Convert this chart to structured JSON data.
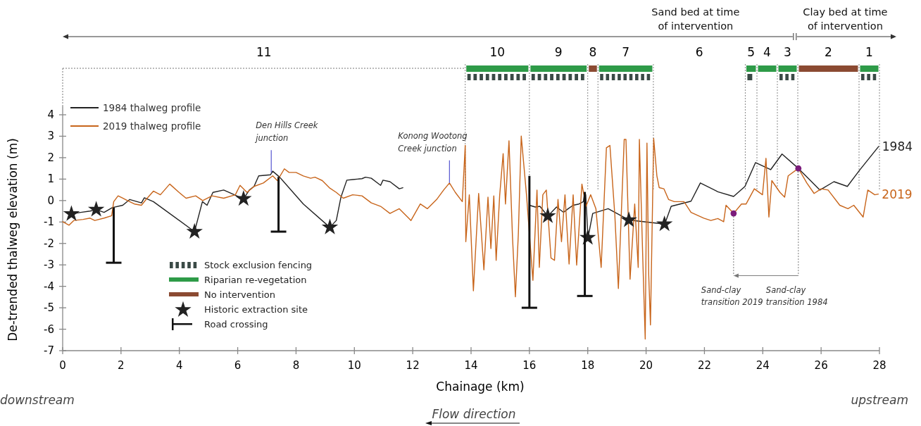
{
  "chart_data": {
    "type": "line",
    "xlabel": "Chainage (km)",
    "ylabel": "De-trended thalweg elevation (m)",
    "xlim": [
      0,
      28
    ],
    "xticks": [
      0,
      2,
      4,
      6,
      8,
      10,
      12,
      14,
      16,
      18,
      20,
      22,
      24,
      26,
      28
    ],
    "ylim": [
      -7,
      4.4
    ],
    "yticks": [
      -7,
      -6,
      -5,
      -4,
      -3,
      -2,
      -1,
      0,
      1,
      2,
      3,
      4
    ],
    "legend": "left",
    "grid": false,
    "series": [
      {
        "name": "1984 thalweg profile",
        "color": "#222222",
        "marker": "none",
        "x": [
          0.3,
          0.62,
          0.94,
          1.15,
          1.42,
          1.7,
          2.06,
          2.3,
          2.7,
          2.8,
          3.11,
          4.52,
          4.79,
          4.95,
          5.15,
          5.52,
          6.2,
          6.4,
          6.56,
          6.72,
          7.12,
          7.2,
          7.44,
          8.25,
          9.16,
          9.38,
          9.54,
          9.74,
          9.94,
          10.26,
          10.38,
          10.58,
          10.9,
          10.98,
          11.22,
          11.54,
          11.66,
          13.8,
          16.0,
          16.2,
          16.36,
          16.63,
          16.93,
          17.17,
          17.33,
          17.5,
          17.7,
          17.85,
          17.89,
          17.93,
          18.01,
          18.17,
          18.7,
          19.42,
          20.64,
          20.86,
          21.54,
          21.86,
          22.46,
          23.0,
          23.39,
          23.75,
          24.27,
          24.66,
          25.22,
          25.96,
          26.44,
          26.9,
          27.32,
          27.97
        ],
        "values": [
          -0.62,
          -0.55,
          -0.49,
          -0.42,
          -0.55,
          -0.33,
          -0.22,
          0.05,
          -0.11,
          0.13,
          -0.05,
          -1.45,
          -0.05,
          -0.22,
          0.38,
          0.49,
          0.08,
          0.49,
          0.66,
          1.15,
          1.2,
          1.37,
          1.09,
          -0.16,
          -1.25,
          -0.93,
          0.16,
          0.95,
          0.98,
          1.02,
          1.09,
          1.04,
          0.71,
          0.95,
          0.88,
          0.55,
          0.6,
          null,
          -0.22,
          -0.3,
          -0.27,
          -0.73,
          -0.3,
          -0.55,
          -0.38,
          -0.22,
          -0.16,
          -0.05,
          0.38,
          0.27,
          -1.73,
          -0.6,
          -0.38,
          -0.91,
          -1.1,
          -0.27,
          -0.03,
          0.82,
          0.41,
          0.19,
          0.66,
          1.77,
          1.44,
          2.17,
          1.5,
          0.49,
          0.88,
          0.66,
          1.42,
          2.52
        ]
      },
      {
        "name": "2019 thalweg profile",
        "color": "#c8651b",
        "marker": "none",
        "x": [
          0,
          0.22,
          0.38,
          0.7,
          0.94,
          1.1,
          1.42,
          1.68,
          1.75,
          1.9,
          2.06,
          2.22,
          2.46,
          2.7,
          2.86,
          3.11,
          3.35,
          3.67,
          3.99,
          4.23,
          4.56,
          4.8,
          5.12,
          5.52,
          5.92,
          6.08,
          6.32,
          6.56,
          6.88,
          7.2,
          7.36,
          7.6,
          7.76,
          8.0,
          8.25,
          8.5,
          8.65,
          8.9,
          9.14,
          9.38,
          9.62,
          9.94,
          10.26,
          10.58,
          10.9,
          11.22,
          11.54,
          11.86,
          11.94,
          12.26,
          12.5,
          12.82,
          13.06,
          13.26,
          13.46,
          13.7,
          13.8,
          13.82,
          13.94,
          14.08,
          14.26,
          14.44,
          14.58,
          14.68,
          14.78,
          14.86,
          14.98,
          15.1,
          15.18,
          15.3,
          15.42,
          15.52,
          15.62,
          15.72,
          15.9,
          16.12,
          16.26,
          16.34,
          16.46,
          16.58,
          16.74,
          16.86,
          16.98,
          17.1,
          17.22,
          17.36,
          17.5,
          17.62,
          17.8,
          17.94,
          18.1,
          18.28,
          18.46,
          18.64,
          18.76,
          18.93,
          19.05,
          19.25,
          19.31,
          19.45,
          19.61,
          19.73,
          19.77,
          19.89,
          19.97,
          20.03,
          20.09,
          20.15,
          20.26,
          20.37,
          20.45,
          20.61,
          20.77,
          20.97,
          21.3,
          21.54,
          21.98,
          22.22,
          22.46,
          22.66,
          22.74,
          23.0,
          23.27,
          23.43,
          23.71,
          23.99,
          24.11,
          24.21,
          24.31,
          24.59,
          24.75,
          24.87,
          25.22,
          25.51,
          25.76,
          26.0,
          26.24,
          26.64,
          26.92,
          27.12,
          27.44,
          27.6,
          27.84,
          27.96
        ],
        "values": [
          -0.99,
          -1.15,
          -0.93,
          -0.88,
          -0.82,
          -0.93,
          -0.82,
          -0.71,
          -0.05,
          0.22,
          0.11,
          0,
          -0.16,
          -0.22,
          0.05,
          0.44,
          0.27,
          0.77,
          0.38,
          0.11,
          0.22,
          0,
          0.22,
          0.11,
          0.27,
          0.71,
          0.38,
          0.66,
          0.82,
          1.15,
          0.93,
          1.48,
          1.31,
          1.31,
          1.15,
          1.04,
          1.09,
          0.93,
          0.6,
          0.38,
          0.11,
          0.27,
          0.22,
          -0.11,
          -0.27,
          -0.6,
          -0.38,
          -0.82,
          -0.93,
          -0.16,
          -0.38,
          0.05,
          0.49,
          0.82,
          0.38,
          -0.05,
          2.57,
          -1.92,
          0.27,
          -4.21,
          0.33,
          -3.23,
          0.16,
          -2.24,
          0.22,
          -2.79,
          0.22,
          2.19,
          -0.16,
          2.79,
          -1.7,
          -4.49,
          -1.59,
          3.01,
          0.27,
          -3.72,
          0.49,
          -3.12,
          0.27,
          0.49,
          -2.68,
          -2.79,
          0.05,
          -1.92,
          0.27,
          -2.96,
          0.27,
          -3.01,
          0.77,
          -0.27,
          0.27,
          -0.38,
          -3.12,
          2.46,
          2.57,
          -0.71,
          -4.1,
          2.85,
          2.85,
          -3.67,
          -0.16,
          -3.12,
          2.85,
          -2.85,
          -6.46,
          2.68,
          -3.45,
          -5.8,
          2.9,
          1.15,
          0.6,
          0.55,
          0.05,
          -0.05,
          -0.05,
          -0.55,
          -0.82,
          -0.93,
          -0.84,
          -0.99,
          -0.22,
          -0.6,
          -0.16,
          -0.16,
          0.55,
          0.27,
          1.97,
          -0.77,
          0.93,
          0.38,
          0.16,
          1.15,
          1.5,
          0.82,
          0.33,
          0.55,
          0.49,
          -0.22,
          -0.38,
          -0.22,
          -0.77,
          0.49,
          0.27,
          0.3
        ]
      },
      {
        "type": "scatter",
        "color": "#7b1c7b",
        "marker": "circle",
        "x": [
          23.0,
          25.22
        ],
        "values": [
          -0.6,
          1.5
        ]
      },
      {
        "name": "Historic extraction site",
        "type": "scatter",
        "color": "#222222",
        "marker": "star",
        "x": [
          0.3,
          1.15,
          4.52,
          6.2,
          9.16,
          16.63,
          18.0,
          19.41,
          20.63
        ],
        "values": [
          -0.62,
          -0.42,
          -1.45,
          0.08,
          -1.25,
          -0.72,
          -1.73,
          -0.91,
          -1.1
        ]
      },
      {
        "name": "Road crossing",
        "type": "bar",
        "color": "#111111",
        "x": [
          1.75,
          7.4,
          16.0,
          17.9
        ],
        "base": [
          -2.9,
          -1.45,
          -5.0,
          -4.45
        ],
        "values": [
          2.57,
          2.55,
          6.15,
          4.85
        ]
      }
    ],
    "ref_lines": [
      {
        "axis": "x",
        "value": 13.8,
        "color": "#888888",
        "line_style": "dotted"
      },
      {
        "axis": "x",
        "value": 16.0,
        "color": "#888888",
        "line_style": "dotted"
      },
      {
        "axis": "x",
        "value": 18.0,
        "color": "#888888",
        "line_style": "dotted"
      },
      {
        "axis": "x",
        "value": 18.35,
        "color": "#888888",
        "line_style": "dotted"
      },
      {
        "axis": "x",
        "value": 20.25,
        "color": "#888888",
        "line_style": "dotted"
      },
      {
        "axis": "x",
        "value": 23.4,
        "color": "#888888",
        "line_style": "dotted"
      },
      {
        "axis": "x",
        "value": 23.8,
        "color": "#888888",
        "line_style": "dotted"
      },
      {
        "axis": "x",
        "value": 24.5,
        "color": "#888888",
        "line_style": "dotted"
      },
      {
        "axis": "x",
        "value": 25.2,
        "color": "#888888",
        "line_style": "dotted"
      },
      {
        "axis": "x",
        "value": 27.3,
        "color": "#888888",
        "line_style": "dotted"
      },
      {
        "axis": "x",
        "value": 28.0,
        "color": "#888888",
        "line_style": "dotted"
      }
    ],
    "annotations": [
      "Sand bed at time of intervention",
      "Clay bed at time of intervention",
      "downstream",
      "upstream",
      "Flow direction",
      "11",
      "10",
      "9",
      "8",
      "7",
      "6",
      "5",
      "4",
      "3",
      "2",
      "1",
      "Stock exclusion fencing",
      "Riparian re-vegetation",
      "No intervention",
      {
        "text": "Den Hills Creek junction",
        "x": 7.15,
        "y": 1.3
      },
      {
        "text": "Konong Wootong Creek junction",
        "x": 13.26,
        "y": 0.82
      },
      {
        "text": "Sand-clay transition 2019",
        "x": 23.0,
        "y": -0.6
      },
      {
        "text": "Sand-clay transition 1984",
        "x": 25.22,
        "y": 1.5
      },
      {
        "text": "1984",
        "x": 27.97,
        "y": 2.52
      },
      {
        "text": "2019",
        "x": 27.96,
        "y": 0.3
      }
    ]
  }
}
